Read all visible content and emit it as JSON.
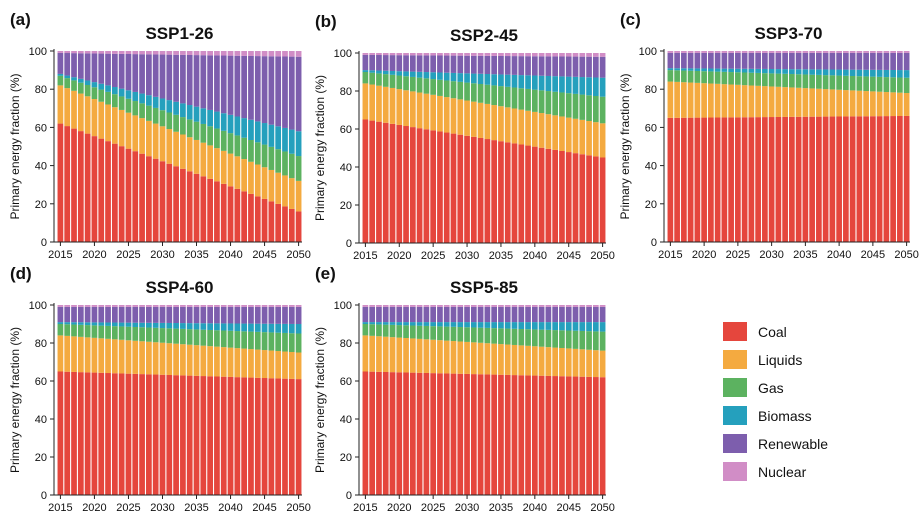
{
  "figure": {
    "legend_position": "bottom-right",
    "legend": [
      {
        "key": "coal",
        "label": "Coal",
        "color": "#E5463D"
      },
      {
        "key": "liquids",
        "label": "Liquids",
        "color": "#F4AA40"
      },
      {
        "key": "gas",
        "label": "Gas",
        "color": "#5CB260"
      },
      {
        "key": "biomass",
        "label": "Biomass",
        "color": "#25A0BD"
      },
      {
        "key": "renewable",
        "label": "Renewable",
        "color": "#7D5EAD"
      },
      {
        "key": "nuclear",
        "label": "Nuclear",
        "color": "#D18DC6"
      }
    ]
  },
  "chart_data": [
    {
      "type": "bar",
      "stacked": true,
      "panel_tag": "(a)",
      "title": "SSP1-26",
      "xlabel": "",
      "ylabel": "Primary energy fraction (%)",
      "ylim": [
        0,
        100
      ],
      "yticks": [
        0,
        20,
        40,
        60,
        80,
        100
      ],
      "xlim": [
        2015,
        2050
      ],
      "xticks": [
        2015,
        2020,
        2025,
        2030,
        2035,
        2040,
        2045,
        2050
      ],
      "x": [
        2015,
        2050
      ],
      "series": [
        {
          "name": "Coal",
          "values": [
            62,
            16
          ]
        },
        {
          "name": "Liquids",
          "values": [
            20,
            16
          ]
        },
        {
          "name": "Gas",
          "values": [
            5,
            13
          ]
        },
        {
          "name": "Biomass",
          "values": [
            1,
            13
          ]
        },
        {
          "name": "Renewable",
          "values": [
            11,
            39
          ]
        },
        {
          "name": "Nuclear",
          "values": [
            1,
            3
          ]
        }
      ]
    },
    {
      "type": "bar",
      "stacked": true,
      "panel_tag": "(b)",
      "title": "SSP2-45",
      "xlabel": "",
      "ylabel": "Primary energy fraction (%)",
      "ylim": [
        0,
        100
      ],
      "yticks": [
        0,
        20,
        40,
        60,
        80,
        100
      ],
      "xlim": [
        2015,
        2050
      ],
      "xticks": [
        2015,
        2020,
        2025,
        2030,
        2035,
        2040,
        2045,
        2050
      ],
      "x": [
        2015,
        2050
      ],
      "series": [
        {
          "name": "Coal",
          "values": [
            65,
            45
          ]
        },
        {
          "name": "Liquids",
          "values": [
            19,
            18
          ]
        },
        {
          "name": "Gas",
          "values": [
            6,
            14
          ]
        },
        {
          "name": "Biomass",
          "values": [
            1,
            10
          ]
        },
        {
          "name": "Renewable",
          "values": [
            8,
            11
          ]
        },
        {
          "name": "Nuclear",
          "values": [
            1,
            2
          ]
        }
      ]
    },
    {
      "type": "bar",
      "stacked": true,
      "panel_tag": "(c)",
      "title": "SSP3-70",
      "xlabel": "",
      "ylabel": "Primary energy fraction (%)",
      "ylim": [
        0,
        100
      ],
      "yticks": [
        0,
        20,
        40,
        60,
        80,
        100
      ],
      "xlim": [
        2015,
        2050
      ],
      "xticks": [
        2015,
        2020,
        2025,
        2030,
        2035,
        2040,
        2045,
        2050
      ],
      "x": [
        2015,
        2050
      ],
      "series": [
        {
          "name": "Coal",
          "values": [
            65,
            66
          ]
        },
        {
          "name": "Liquids",
          "values": [
            19,
            12
          ]
        },
        {
          "name": "Gas",
          "values": [
            6,
            8
          ]
        },
        {
          "name": "Biomass",
          "values": [
            1,
            4
          ]
        },
        {
          "name": "Renewable",
          "values": [
            8,
            9
          ]
        },
        {
          "name": "Nuclear",
          "values": [
            1,
            1
          ]
        }
      ]
    },
    {
      "type": "bar",
      "stacked": true,
      "panel_tag": "(d)",
      "title": "SSP4-60",
      "xlabel": "",
      "ylabel": "Primary energy fraction (%)",
      "ylim": [
        0,
        100
      ],
      "yticks": [
        0,
        20,
        40,
        60,
        80,
        100
      ],
      "xlim": [
        2015,
        2050
      ],
      "xticks": [
        2015,
        2020,
        2025,
        2030,
        2035,
        2040,
        2045,
        2050
      ],
      "x": [
        2015,
        2050
      ],
      "series": [
        {
          "name": "Coal",
          "values": [
            65,
            61
          ]
        },
        {
          "name": "Liquids",
          "values": [
            19,
            14
          ]
        },
        {
          "name": "Gas",
          "values": [
            6,
            10
          ]
        },
        {
          "name": "Biomass",
          "values": [
            1,
            5
          ]
        },
        {
          "name": "Renewable",
          "values": [
            8,
            9
          ]
        },
        {
          "name": "Nuclear",
          "values": [
            1,
            1
          ]
        }
      ]
    },
    {
      "type": "bar",
      "stacked": true,
      "panel_tag": "(e)",
      "title": "SSP5-85",
      "xlabel": "",
      "ylabel": "Primary energy fraction (%)",
      "ylim": [
        0,
        100
      ],
      "yticks": [
        0,
        20,
        40,
        60,
        80,
        100
      ],
      "xlim": [
        2015,
        2050
      ],
      "xticks": [
        2015,
        2020,
        2025,
        2030,
        2035,
        2040,
        2045,
        2050
      ],
      "x": [
        2015,
        2050
      ],
      "series": [
        {
          "name": "Coal",
          "values": [
            65,
            62
          ]
        },
        {
          "name": "Liquids",
          "values": [
            19,
            14
          ]
        },
        {
          "name": "Gas",
          "values": [
            6,
            10
          ]
        },
        {
          "name": "Biomass",
          "values": [
            1,
            5
          ]
        },
        {
          "name": "Renewable",
          "values": [
            8,
            8
          ]
        },
        {
          "name": "Nuclear",
          "values": [
            1,
            1
          ]
        }
      ]
    }
  ]
}
